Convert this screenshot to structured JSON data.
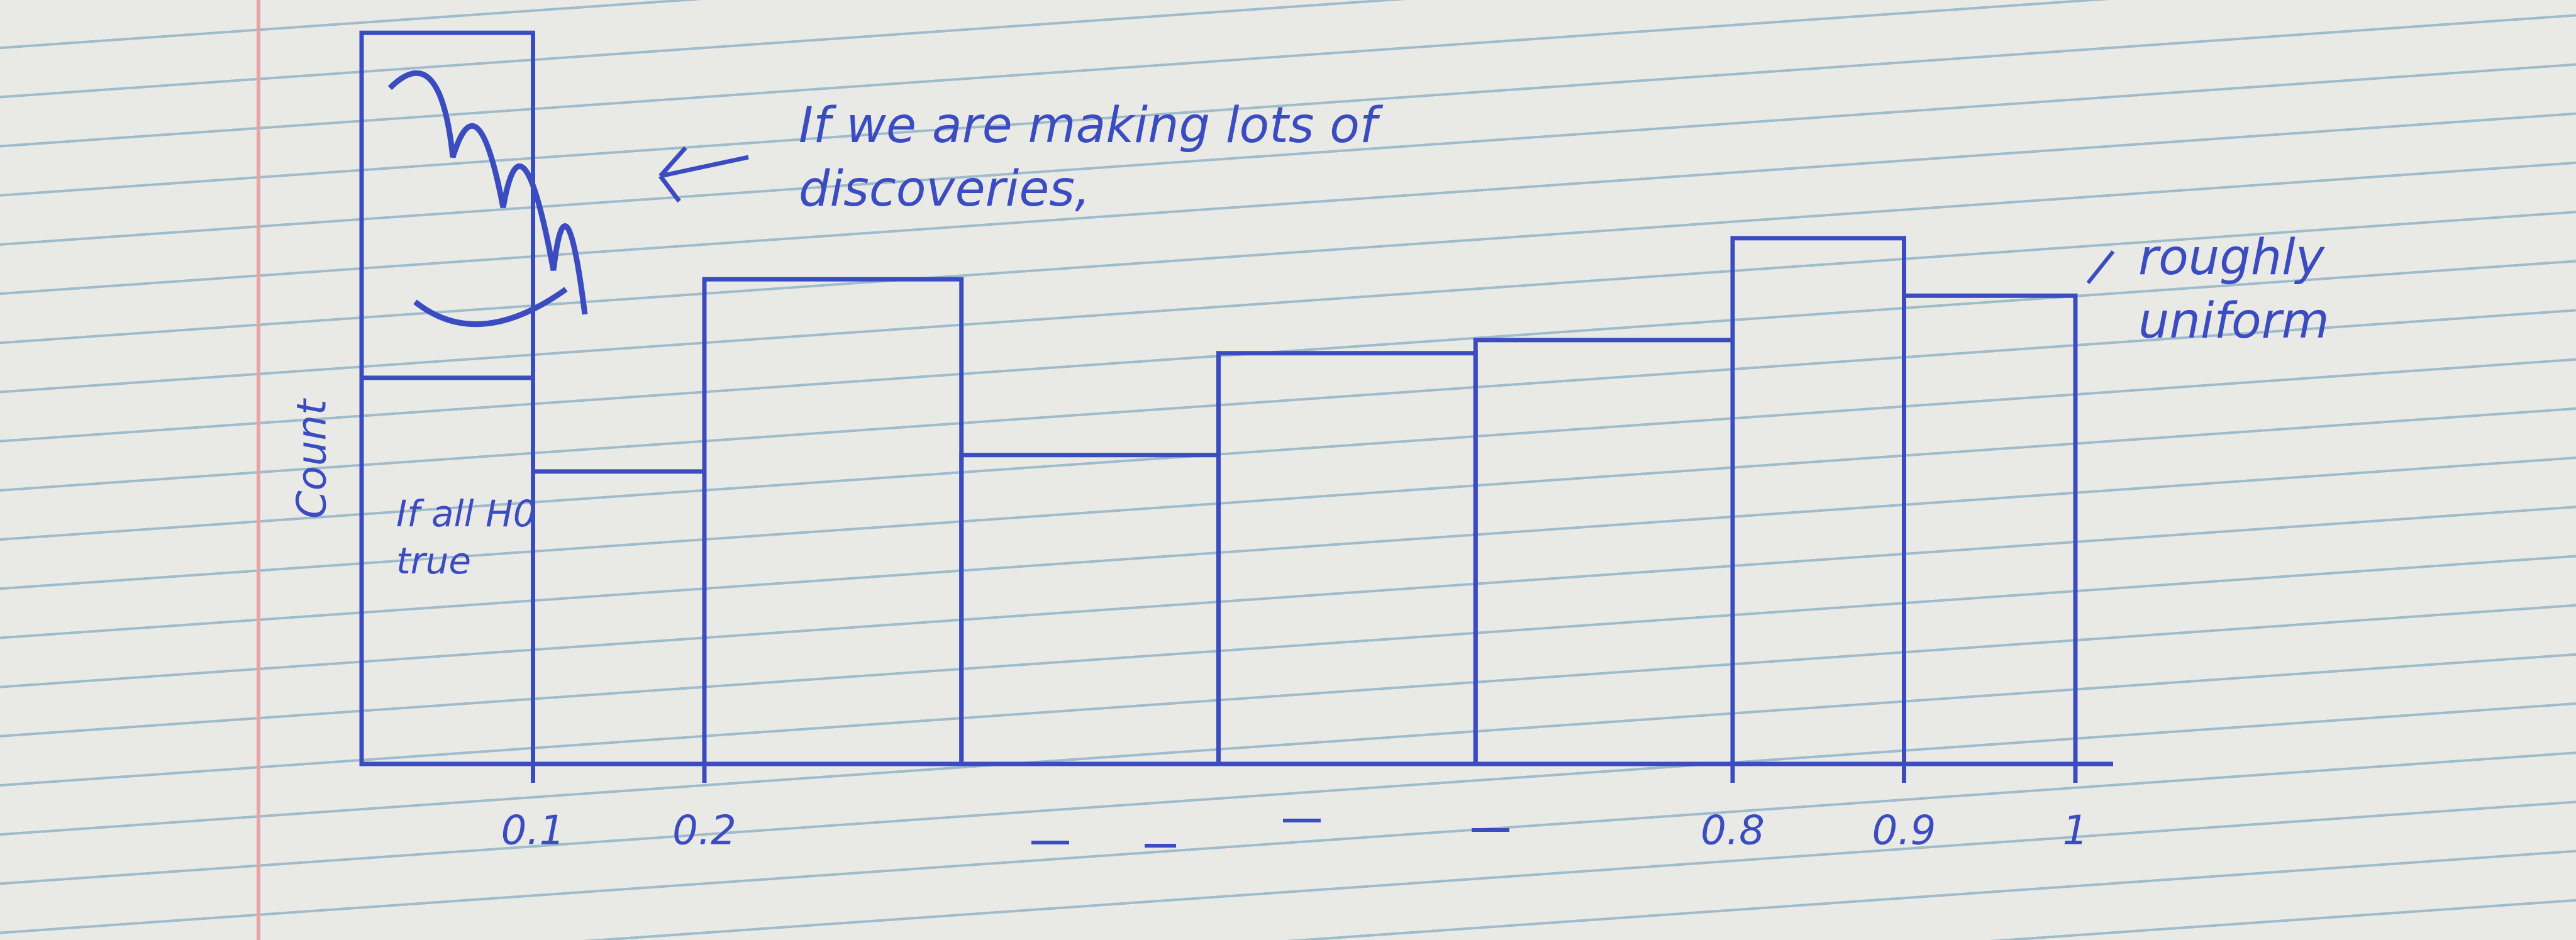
{
  "chart_data": {
    "type": "histogram",
    "ylabel": "Count",
    "annotations": [
      "If we are making lots of discoveries,",
      "roughly uniform",
      "If all H0 true"
    ],
    "bins": [
      0,
      0.1,
      0.2,
      0.35,
      0.5,
      0.65,
      0.8,
      0.9,
      1
    ],
    "values": [
      235,
      178,
      295,
      188,
      250,
      258,
      320,
      285
    ],
    "excess_values": [
      210,
      0,
      0,
      0,
      0,
      0,
      0,
      0
    ],
    "color": "#3b4cc0",
    "xlim": [
      0,
      1
    ],
    "ylim": [
      0,
      460
    ],
    "xticks": [
      0.1,
      0.2,
      0.8,
      0.9,
      1
    ]
  }
}
